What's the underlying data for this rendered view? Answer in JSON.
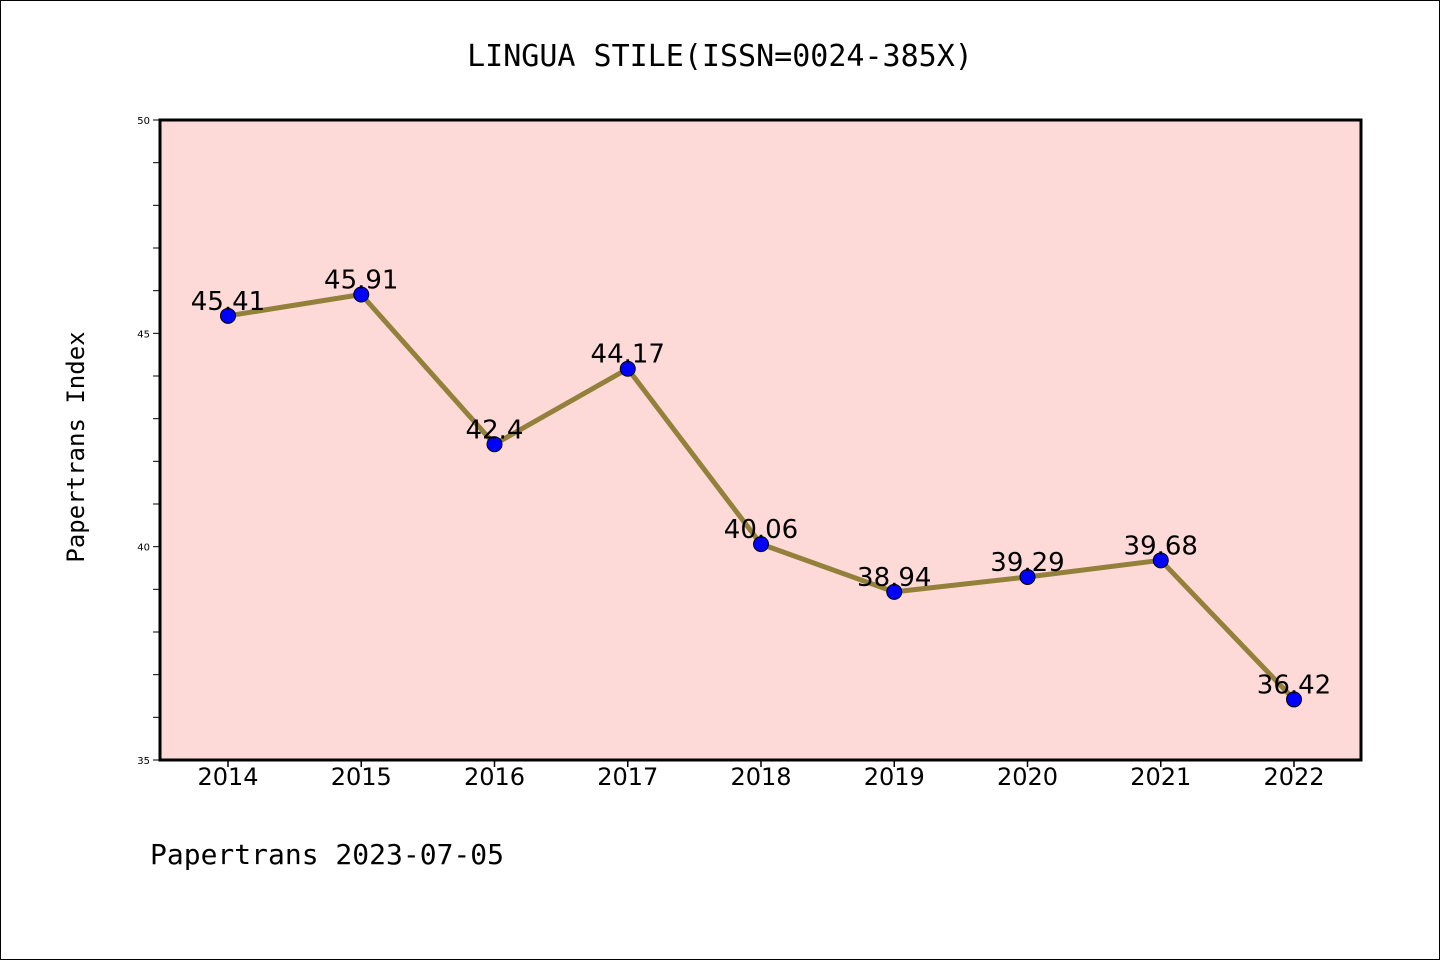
{
  "chart_data": {
    "type": "line",
    "title": "LINGUA STILE(ISSN=0024-385X)",
    "ylabel": "Papertrans Index",
    "xlabel": "",
    "categories": [
      "2014",
      "2015",
      "2016",
      "2017",
      "2018",
      "2019",
      "2020",
      "2021",
      "2022"
    ],
    "values": [
      45.41,
      45.91,
      42.4,
      44.17,
      40.06,
      38.94,
      39.29,
      39.68,
      36.42
    ],
    "data_labels": [
      "45.41",
      "45.91",
      "42.4",
      "44.17",
      "40.06",
      "38.94",
      "39.29",
      "39.68",
      "36.42"
    ],
    "ylim": [
      35,
      50
    ],
    "yticks": [
      "35",
      "40",
      "45",
      "50"
    ],
    "grid": false,
    "colors": {
      "plot_background": "#fddad7",
      "line": "#93803a",
      "marker": "#0000ff"
    }
  },
  "footer": "Papertrans 2023-07-05"
}
